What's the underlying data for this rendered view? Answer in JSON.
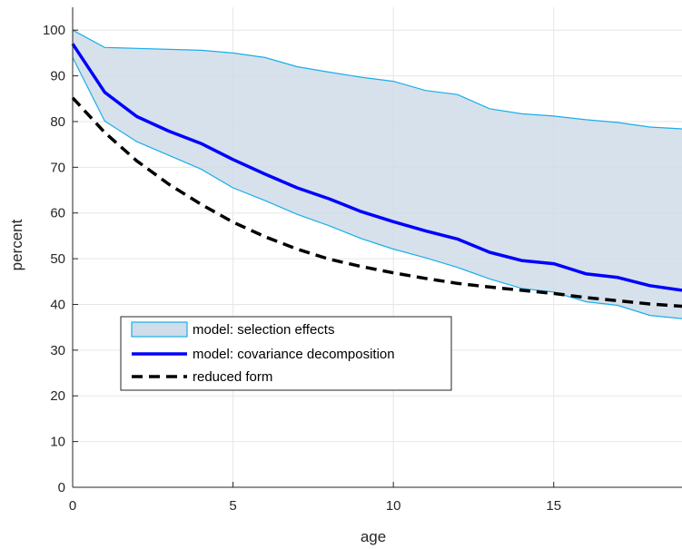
{
  "chart_data": {
    "type": "line",
    "xlabel": "age",
    "ylabel": "percent",
    "xlim": [
      0,
      19
    ],
    "ylim": [
      0,
      105
    ],
    "xticks": [
      0,
      5,
      10,
      15
    ],
    "yticks": [
      0,
      10,
      20,
      30,
      40,
      50,
      60,
      70,
      80,
      90,
      100
    ],
    "grid": true,
    "legend_position": "lower-left",
    "x": [
      0,
      1,
      2,
      3,
      4,
      5,
      6,
      7,
      8,
      9,
      10,
      11,
      12,
      13,
      14,
      15,
      16,
      17,
      18,
      19
    ],
    "band": {
      "name": "model: selection effects",
      "upper": [
        100,
        96.2,
        96.0,
        95.8,
        95.6,
        95.0,
        94.0,
        92.0,
        90.8,
        89.7,
        88.8,
        86.8,
        85.9,
        82.8,
        81.7,
        81.2,
        80.4,
        79.8,
        78.8,
        78.4
      ],
      "lower": [
        94.0,
        80.1,
        75.6,
        72.6,
        69.6,
        65.5,
        62.7,
        59.7,
        57.2,
        54.4,
        52.1,
        50.2,
        48.1,
        45.6,
        43.5,
        42.7,
        40.6,
        39.8,
        37.6,
        36.9
      ],
      "fill": "#cfdce9",
      "edge": "#1aaee8"
    },
    "series": [
      {
        "name": "model: covariance decomposition",
        "values": [
          97.0,
          86.4,
          81.1,
          77.9,
          75.2,
          71.7,
          68.5,
          65.5,
          63.1,
          60.3,
          58.1,
          56.1,
          54.3,
          51.4,
          49.6,
          48.9,
          46.7,
          45.9,
          44.1,
          43.1
        ],
        "color": "#0000ff",
        "style": "solid"
      },
      {
        "name": "reduced form",
        "values": [
          85.2,
          77.6,
          71.4,
          66.3,
          61.9,
          58.0,
          54.8,
          52.1,
          49.9,
          48.3,
          46.9,
          45.7,
          44.6,
          43.8,
          43.1,
          42.4,
          41.5,
          40.8,
          40.1,
          39.6
        ],
        "color": "#000000",
        "style": "dashed"
      }
    ]
  }
}
